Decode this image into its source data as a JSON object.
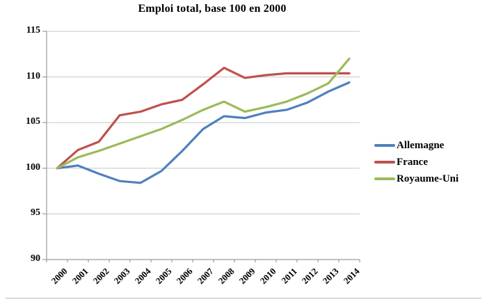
{
  "page": {
    "background": "#ffffff"
  },
  "chart_data": {
    "type": "line",
    "title": "Emploi total, base 100 en 2000",
    "categories": [
      "2000",
      "2001",
      "2002",
      "2003",
      "2004",
      "2005",
      "2006",
      "2007",
      "2008",
      "2009",
      "2010",
      "2011",
      "2012",
      "2013",
      "2014"
    ],
    "series": [
      {
        "name": "Allemagne",
        "color": "#4F81BD",
        "values": [
          100,
          100.3,
          99.4,
          98.6,
          98.4,
          99.7,
          101.9,
          104.3,
          105.7,
          105.5,
          106.1,
          106.4,
          107.2,
          108.4,
          109.4
        ]
      },
      {
        "name": "France",
        "color": "#C0504D",
        "values": [
          100,
          102.0,
          102.9,
          105.8,
          106.2,
          107.0,
          107.5,
          109.2,
          111.0,
          109.9,
          110.2,
          110.4,
          110.4,
          110.4,
          110.4
        ]
      },
      {
        "name": "Royaume-Uni",
        "color": "#9BBB59",
        "values": [
          100,
          101.2,
          101.9,
          102.7,
          103.5,
          104.3,
          105.3,
          106.4,
          107.3,
          106.2,
          106.7,
          107.3,
          108.2,
          109.3,
          112.0
        ]
      }
    ],
    "xlabel": "",
    "ylabel": "",
    "ylim": [
      90,
      115
    ],
    "yticks": [
      90,
      95,
      100,
      105,
      110,
      115
    ],
    "grid": true,
    "legend_position": "right",
    "grid_color": "#C6C6C6",
    "axis_color": "#9A9A9A"
  }
}
